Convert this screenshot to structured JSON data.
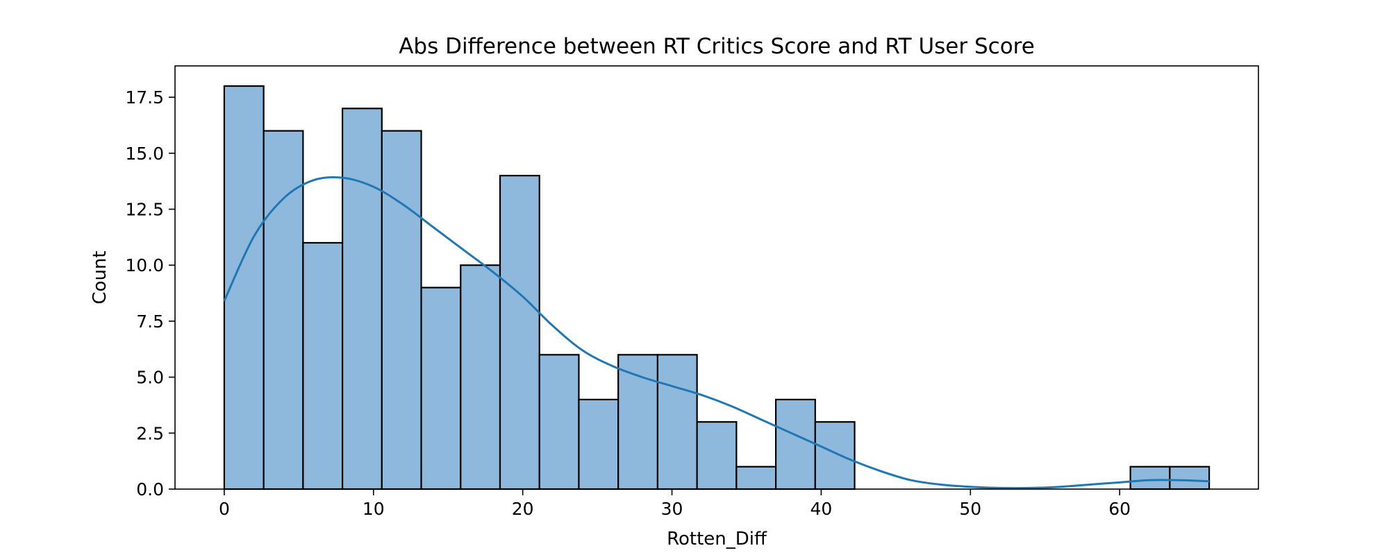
{
  "chart_data": {
    "type": "bar",
    "subtype": "histogram_with_kde",
    "title": "Abs Difference between RT Critics Score and RT User Score",
    "xlabel": "Rotten_Diff",
    "ylabel": "Count",
    "xlim": [
      -3.3,
      69.3
    ],
    "ylim": [
      0,
      18.9
    ],
    "xticks": [
      0,
      10,
      20,
      30,
      40,
      50,
      60
    ],
    "xtick_labels": [
      "0",
      "10",
      "20",
      "30",
      "40",
      "50",
      "60"
    ],
    "yticks": [
      0,
      2.5,
      5,
      7.5,
      10,
      12.5,
      15,
      17.5
    ],
    "ytick_labels": [
      "0.0",
      "2.5",
      "5.0",
      "7.5",
      "10.0",
      "12.5",
      "15.0",
      "17.5"
    ],
    "bins": {
      "start": 0,
      "width": 2.64,
      "counts": [
        18,
        16,
        11,
        17,
        16,
        9,
        10,
        14,
        6,
        4,
        6,
        6,
        3,
        1,
        4,
        3,
        0,
        0,
        0,
        0,
        0,
        0,
        0,
        1,
        1
      ]
    },
    "kde": {
      "x": [
        0,
        2,
        4,
        6,
        8,
        10,
        12,
        14,
        16,
        18,
        20,
        22,
        24,
        26,
        28,
        30,
        32,
        34,
        36,
        38,
        40,
        42,
        44,
        46,
        48,
        50,
        52,
        54,
        56,
        58,
        60,
        62,
        64,
        66
      ],
      "y": [
        8.4,
        11.3,
        13.0,
        13.8,
        13.9,
        13.5,
        12.7,
        11.7,
        10.7,
        9.7,
        8.6,
        7.3,
        6.2,
        5.5,
        5.0,
        4.6,
        4.2,
        3.7,
        3.1,
        2.5,
        1.9,
        1.3,
        0.8,
        0.4,
        0.2,
        0.1,
        0.05,
        0.05,
        0.1,
        0.2,
        0.3,
        0.4,
        0.4,
        0.35
      ]
    },
    "grid": false,
    "legend": "none",
    "colors": {
      "bar_fill": "#8fb9dc",
      "bar_edge": "#000000",
      "kde_line": "#1f77b4"
    }
  }
}
